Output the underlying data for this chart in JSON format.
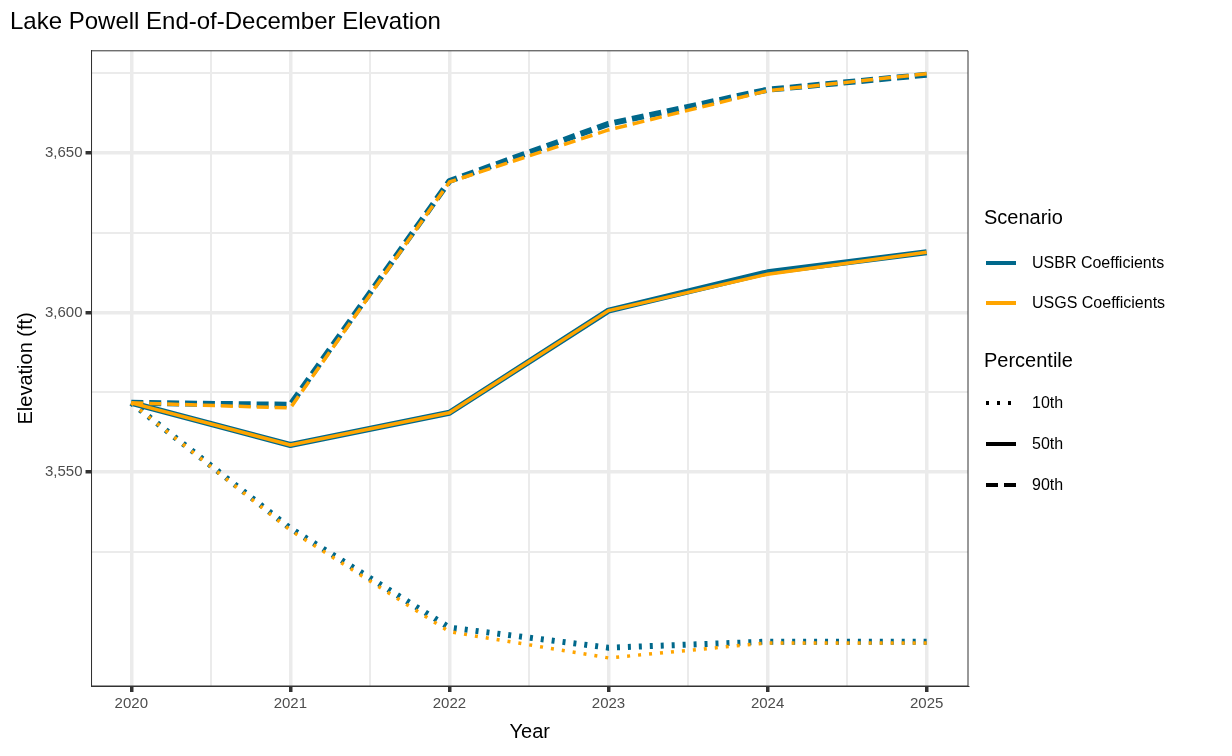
{
  "chart_data": {
    "type": "line",
    "title": "Lake Powell End-of-December Elevation",
    "xlabel": "Year",
    "ylabel": "Elevation (ft)",
    "legend_title": [
      "Scenario",
      "Percentile"
    ],
    "annotations": [
      "USBR Coefficients",
      "USGS Coefficients",
      "10th",
      "50th",
      "90th"
    ],
    "x": [
      2020,
      2021,
      2022,
      2023,
      2024,
      2025
    ],
    "xlim": [
      2019.75,
      2025.26
    ],
    "xticks": [
      2020,
      {
        "value": 2020.5,
        "label": null
      },
      2021,
      {
        "value": 2021.5,
        "label": null
      },
      2022,
      {
        "value": 2022.5,
        "label": null
      },
      2023,
      {
        "value": 2023.5,
        "label": null
      },
      2024,
      {
        "value": 2024.5,
        "label": null
      },
      2025
    ],
    "ylim": [
      3483,
      3682
    ],
    "yticks": [
      {
        "value": 3525,
        "label": null
      },
      {
        "value": 3550,
        "label": "3,550"
      },
      {
        "value": 3575,
        "label": null
      },
      {
        "value": 3600,
        "label": "3,600"
      },
      {
        "value": 3625,
        "label": null
      },
      {
        "value": 3650,
        "label": "3,650"
      },
      {
        "value": 3675,
        "label": null
      }
    ],
    "grid": true,
    "marker": "none",
    "series": [
      {
        "color": "#00688b",
        "line_style": "dotted",
        "values": [
          3571.7,
          3532.4,
          3501.3,
          3495.0,
          3496.9,
          3496.9
        ]
      },
      {
        "color": "#00688b",
        "line_style": "solid",
        "values": [
          3571.7,
          3558.5,
          3568.6,
          3600.6,
          3612.6,
          3618.9
        ]
      },
      {
        "color": "#00688b",
        "line_style": "dashed",
        "values": [
          3571.7,
          3571.1,
          3641.2,
          3659.1,
          3669.8,
          3674.5
        ]
      },
      {
        "color": "#ffa500",
        "line_style": "dotted",
        "values": [
          3571.7,
          3531.8,
          3500.0,
          3491.8,
          3496.5,
          3496.5
        ]
      },
      {
        "color": "#ffa500",
        "line_style": "solid",
        "values": [
          3571.7,
          3558.5,
          3568.6,
          3600.6,
          3612.0,
          3618.9
        ]
      },
      {
        "color": "#ffa500",
        "line_style": "dashed",
        "values": [
          3571.7,
          3570.1,
          3640.9,
          3657.2,
          3669.5,
          3674.8
        ]
      }
    ]
  }
}
